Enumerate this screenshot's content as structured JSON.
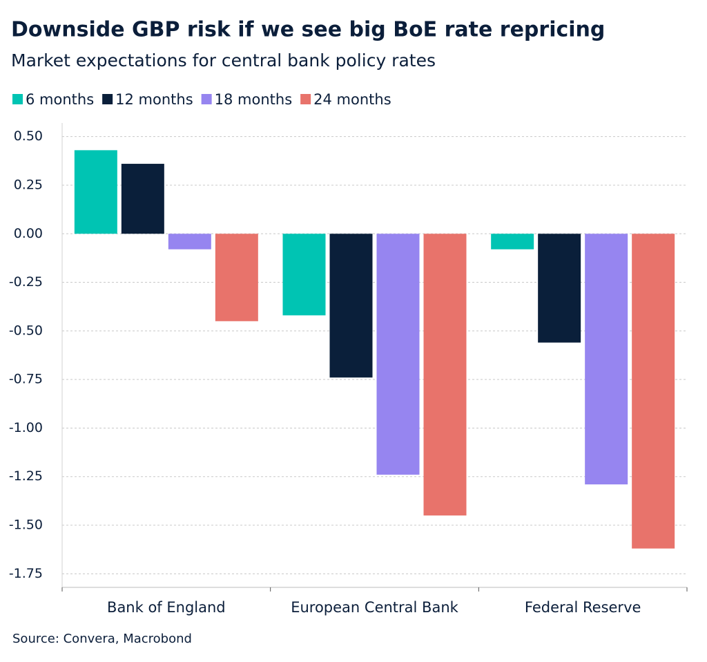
{
  "chart_data": {
    "type": "bar",
    "title": "Downside GBP risk if we see big BoE rate repricing",
    "subtitle": "Market expectations for central bank policy rates",
    "source": "Source: Convera, Macrobond",
    "categories": [
      "Bank of England",
      "European Central Bank",
      "Federal Reserve"
    ],
    "series": [
      {
        "name": "6 months",
        "color": "#00c4b3",
        "values": [
          0.43,
          -0.42,
          -0.08
        ]
      },
      {
        "name": "12 months",
        "color": "#0a1f3a",
        "values": [
          0.36,
          -0.74,
          -0.56
        ]
      },
      {
        "name": "18 months",
        "color": "#9685f0",
        "values": [
          -0.08,
          -1.24,
          -1.29
        ]
      },
      {
        "name": "24 months",
        "color": "#e8736b",
        "values": [
          -0.45,
          -1.45,
          -1.62
        ]
      }
    ],
    "ylim": [
      -1.82,
      0.57
    ],
    "yticks": [
      {
        "value": 0.5,
        "label": "0.50"
      },
      {
        "value": 0.25,
        "label": "0.25"
      },
      {
        "value": 0,
        "label": "0.00"
      },
      {
        "value": -0.25,
        "label": "-0.25"
      },
      {
        "value": -0.5,
        "label": "-0.50"
      },
      {
        "value": -0.75,
        "label": "-0.75"
      },
      {
        "value": -1,
        "label": "-1.00"
      },
      {
        "value": -1.25,
        "label": "-1.25"
      },
      {
        "value": -1.5,
        "label": "-1.50"
      },
      {
        "value": -1.75,
        "label": "-1.75"
      }
    ],
    "grid": true
  }
}
